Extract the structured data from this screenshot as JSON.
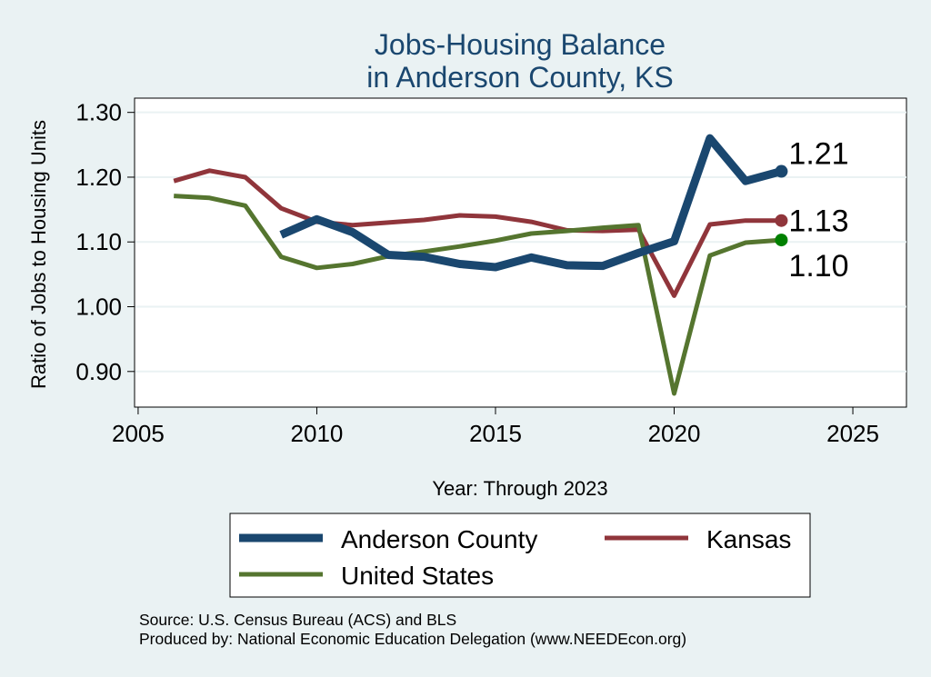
{
  "chart_data": {
    "type": "line",
    "title": [
      "Jobs-Housing Balance",
      "in Anderson County, KS"
    ],
    "xlabel": "Year: Through 2023",
    "ylabel": "Ratio of Jobs to Housing Units",
    "xlim": [
      2004.9,
      2026.5
    ],
    "ylim": [
      0.845,
      1.322
    ],
    "x_ticks": [
      2005,
      2010,
      2015,
      2020,
      2025
    ],
    "y_ticks": [
      0.9,
      1.0,
      1.1,
      1.2,
      1.3
    ],
    "y_tick_labels": [
      "0.90",
      "1.00",
      "1.10",
      "1.20",
      "1.30"
    ],
    "grid": true,
    "legend_position": "bottom",
    "series": [
      {
        "name": "Anderson County",
        "color": "#1a476f",
        "x": [
          2009,
          2010,
          2011,
          2012,
          2013,
          2014,
          2015,
          2016,
          2017,
          2018,
          2019,
          2020,
          2021,
          2022,
          2023
        ],
        "y": [
          1.111,
          1.135,
          1.115,
          1.08,
          1.077,
          1.066,
          1.061,
          1.076,
          1.064,
          1.063,
          1.083,
          1.101,
          1.26,
          1.194,
          1.209
        ],
        "end_label": "1.21"
      },
      {
        "name": "Kansas",
        "color": "#90353b",
        "x": [
          2006,
          2007,
          2008,
          2009,
          2010,
          2011,
          2012,
          2013,
          2014,
          2015,
          2016,
          2017,
          2018,
          2019,
          2020,
          2021,
          2022,
          2023
        ],
        "y": [
          1.194,
          1.21,
          1.2,
          1.152,
          1.131,
          1.126,
          1.13,
          1.134,
          1.141,
          1.139,
          1.131,
          1.118,
          1.117,
          1.119,
          1.017,
          1.127,
          1.133,
          1.133
        ],
        "end_label": "1.13"
      },
      {
        "name": "United States",
        "color": "#55752f",
        "x": [
          2006,
          2007,
          2008,
          2009,
          2010,
          2011,
          2012,
          2013,
          2014,
          2015,
          2016,
          2017,
          2018,
          2019,
          2020,
          2021,
          2022,
          2023
        ],
        "y": [
          1.171,
          1.168,
          1.156,
          1.077,
          1.06,
          1.066,
          1.078,
          1.085,
          1.093,
          1.102,
          1.113,
          1.117,
          1.122,
          1.126,
          0.866,
          1.079,
          1.099,
          1.103
        ],
        "end_label": "1.10",
        "end_marker_color": "#008000"
      }
    ],
    "legend": [
      "Anderson County",
      "Kansas",
      "United States"
    ],
    "notes": [
      "Source: U.S. Census Bureau (ACS) and BLS",
      "Produced by: National Economic Education Delegation (www.NEEDEcon.org)"
    ]
  }
}
